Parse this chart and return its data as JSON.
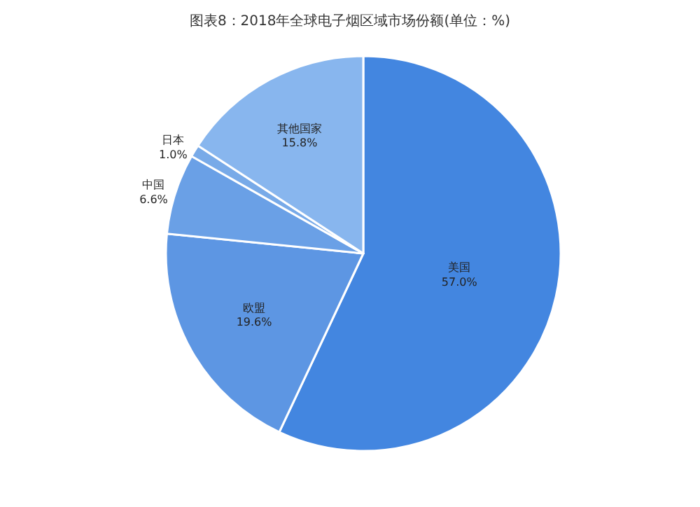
{
  "chart_data": {
    "type": "pie",
    "title": "图表8：2018年全球电子烟区域市场份额(单位：%)",
    "categories": [
      "美国",
      "欧盟",
      "中国",
      "日本",
      "其他国家"
    ],
    "values": [
      57.0,
      19.6,
      6.6,
      1.0,
      15.8
    ],
    "value_labels": [
      "57.0%",
      "19.6%",
      "6.6%",
      "1.0%",
      "15.8%"
    ],
    "colors": [
      "#4386e0",
      "#5d96e3",
      "#6aa0e6",
      "#78aae8",
      "#88b6ee"
    ],
    "legend": false
  }
}
